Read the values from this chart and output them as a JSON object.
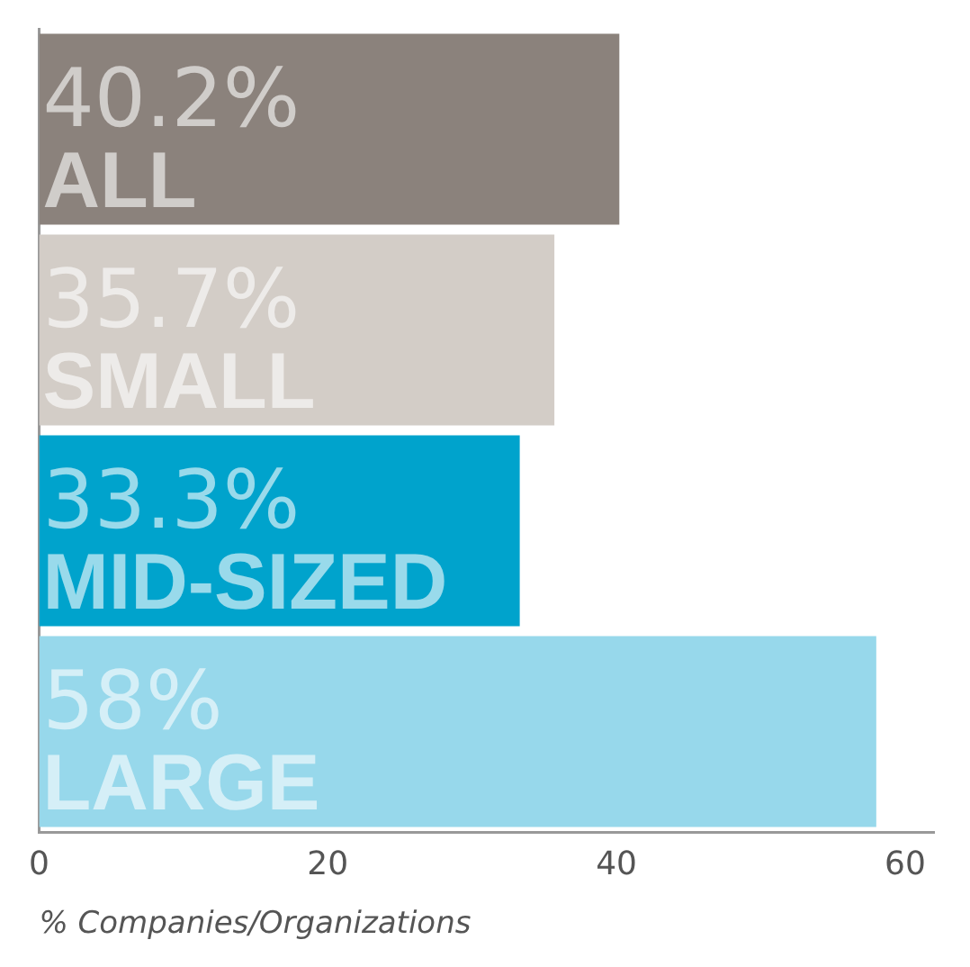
{
  "chart_data": {
    "type": "bar",
    "orientation": "horizontal",
    "categories": [
      "ALL",
      "SMALL",
      "MID-SIZED",
      "LARGE"
    ],
    "values": [
      40.2,
      35.7,
      33.3,
      58
    ],
    "colors": [
      "#8b827c",
      "#d3cdc7",
      "#00a3cc",
      "#97d8eb"
    ],
    "value_labels": [
      "40.2%",
      "35.7%",
      "33.3%",
      "58%"
    ],
    "xlim": [
      0,
      62
    ],
    "xticks": [
      0,
      20,
      40,
      60
    ],
    "xlabel": "% Companies/Organizations",
    "tick_labels": "x",
    "grid": false,
    "legend": false
  }
}
